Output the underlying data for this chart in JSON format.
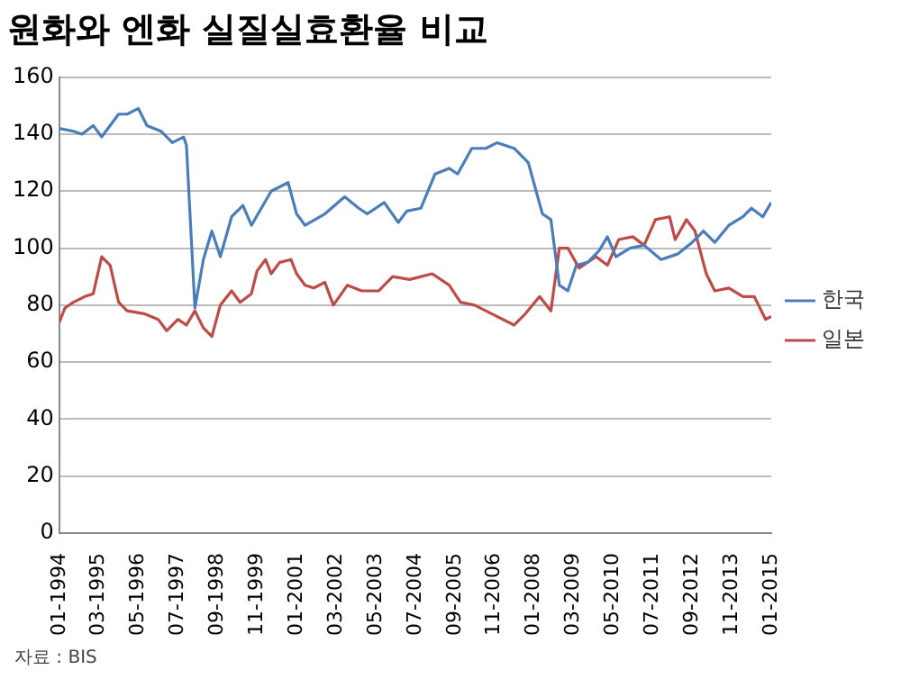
{
  "chart_data": {
    "type": "line",
    "title": "원화와 엔화 실질실효환율 비교",
    "annotations": [
      "자료 : BIS"
    ],
    "xlim": [
      "1994-01",
      "2015-01"
    ],
    "xticks": [
      {
        "value": "1994-01",
        "label": "01-1994"
      },
      {
        "value": "1995-03",
        "label": "03-1995"
      },
      {
        "value": "1996-05",
        "label": "05-1996"
      },
      {
        "value": "1997-07",
        "label": "07-1997"
      },
      {
        "value": "1998-09",
        "label": "09-1998"
      },
      {
        "value": "1999-11",
        "label": "11-1999"
      },
      {
        "value": "2001-01",
        "label": "01-2001"
      },
      {
        "value": "2002-03",
        "label": "03-2002"
      },
      {
        "value": "2003-05",
        "label": "05-2003"
      },
      {
        "value": "2004-07",
        "label": "07-2004"
      },
      {
        "value": "2005-09",
        "label": "09-2005"
      },
      {
        "value": "2006-11",
        "label": "11-2006"
      },
      {
        "value": "2008-01",
        "label": "01-2008"
      },
      {
        "value": "2009-03",
        "label": "03-2009"
      },
      {
        "value": "2010-05",
        "label": "05-2010"
      },
      {
        "value": "2011-07",
        "label": "07-2011"
      },
      {
        "value": "2012-09",
        "label": "09-2012"
      },
      {
        "value": "2013-11",
        "label": "11-2013"
      },
      {
        "value": "2015-01",
        "label": "01-2015"
      }
    ],
    "ylim": [
      0,
      160
    ],
    "yticks": [
      0,
      20,
      40,
      60,
      80,
      100,
      120,
      140,
      160
    ],
    "grid": "y",
    "legend": "right",
    "marker": "none",
    "line_style": "solid",
    "series": [
      {
        "name": "한국",
        "color": "#4a7ebb",
        "x": [
          "1994-01",
          "1994-06",
          "1994-09",
          "1995-01",
          "1995-04",
          "1995-10",
          "1996-01",
          "1996-05",
          "1996-08",
          "1997-01",
          "1997-05",
          "1997-09",
          "1997-10",
          "1998-01",
          "1998-04",
          "1998-07",
          "1998-10",
          "1999-02",
          "1999-06",
          "1999-09",
          "2000-04",
          "2000-10",
          "2001-01",
          "2001-04",
          "2001-11",
          "2002-06",
          "2002-11",
          "2003-02",
          "2003-08",
          "2004-01",
          "2004-04",
          "2004-09",
          "2005-02",
          "2005-07",
          "2005-10",
          "2006-03",
          "2006-08",
          "2006-12",
          "2007-06",
          "2007-11",
          "2008-04",
          "2008-07",
          "2008-10",
          "2009-01",
          "2009-04",
          "2009-08",
          "2009-12",
          "2010-03",
          "2010-06",
          "2010-11",
          "2011-04",
          "2011-10",
          "2012-04",
          "2012-09",
          "2013-01",
          "2013-05",
          "2013-10",
          "2014-03",
          "2014-06",
          "2014-10",
          "2015-01"
        ],
        "values": [
          142,
          141,
          140,
          143,
          139,
          147,
          147,
          149,
          143,
          141,
          137,
          139,
          136,
          79,
          96,
          106,
          97,
          111,
          115,
          108,
          120,
          123,
          112,
          108,
          112,
          118,
          114,
          112,
          116,
          109,
          113,
          114,
          126,
          128,
          126,
          135,
          135,
          137,
          135,
          130,
          112,
          110,
          87,
          85,
          94,
          95,
          99,
          104,
          97,
          100,
          101,
          96,
          98,
          102,
          106,
          102,
          108,
          111,
          114,
          111,
          116
        ]
      },
      {
        "name": "일본",
        "color": "#be4b48",
        "x": [
          "1994-01",
          "1994-03",
          "1994-06",
          "1994-10",
          "1995-01",
          "1995-04",
          "1995-07",
          "1995-10",
          "1996-01",
          "1996-07",
          "1996-12",
          "1997-03",
          "1997-07",
          "1997-10",
          "1998-01",
          "1998-04",
          "1998-07",
          "1998-10",
          "1999-02",
          "1999-05",
          "1999-09",
          "1999-11",
          "2000-02",
          "2000-04",
          "2000-07",
          "2000-11",
          "2001-01",
          "2001-04",
          "2001-07",
          "2001-11",
          "2002-02",
          "2002-07",
          "2002-12",
          "2003-06",
          "2003-11",
          "2004-05",
          "2005-01",
          "2005-07",
          "2005-11",
          "2006-04",
          "2006-10",
          "2007-06",
          "2007-10",
          "2008-03",
          "2008-07",
          "2008-10",
          "2009-01",
          "2009-05",
          "2009-11",
          "2010-03",
          "2010-07",
          "2010-12",
          "2011-04",
          "2011-08",
          "2012-01",
          "2012-03",
          "2012-07",
          "2012-10",
          "2013-02",
          "2013-05",
          "2013-10",
          "2014-03",
          "2014-07",
          "2014-11",
          "2015-01"
        ],
        "values": [
          74,
          79,
          81,
          83,
          84,
          97,
          94,
          81,
          78,
          77,
          75,
          71,
          75,
          73,
          78,
          72,
          69,
          80,
          85,
          81,
          84,
          92,
          96,
          91,
          95,
          96,
          91,
          87,
          86,
          88,
          80,
          87,
          85,
          85,
          90,
          89,
          91,
          87,
          81,
          80,
          77,
          73,
          77,
          83,
          78,
          100,
          100,
          93,
          97,
          94,
          103,
          104,
          101,
          110,
          111,
          103,
          110,
          106,
          91,
          85,
          86,
          83,
          83,
          75,
          76
        ]
      }
    ]
  }
}
